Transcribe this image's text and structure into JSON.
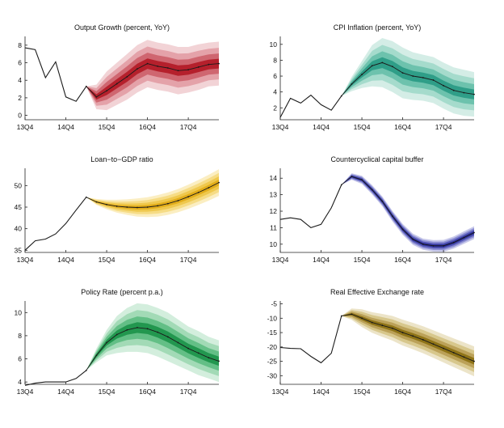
{
  "x_tick_labels": [
    "13Q4",
    "14Q4",
    "15Q4",
    "16Q4",
    "17Q4"
  ],
  "chart_data": [
    {
      "type": "line",
      "title": "Output Growth (percent, YoY)",
      "ylim": [
        -0.5,
        9
      ],
      "yticks": [
        0,
        2,
        4,
        6,
        8
      ],
      "colors": {
        "fan": [
          "#f2d3d6",
          "#e4a2a9",
          "#cf6670",
          "#b5202c"
        ],
        "line": "#1a1a1a"
      },
      "history": [
        7.7,
        7.5,
        4.3,
        6.1,
        2.1,
        1.6,
        3.3
      ],
      "median": [
        3.3,
        2.1,
        2.8,
        3.6,
        4.4,
        5.3,
        5.9,
        5.6,
        5.4,
        5.1,
        5.2,
        5.5,
        5.8,
        5.9
      ],
      "spread": [
        0,
        1.4,
        2.2,
        2.4,
        2.6,
        2.7,
        2.7,
        2.7,
        2.7,
        2.7,
        2.6,
        2.6,
        2.5,
        2.5
      ],
      "grid": false
    },
    {
      "type": "line",
      "title": "CPI Inflation (percent, YoY)",
      "ylim": [
        0.5,
        11
      ],
      "yticks": [
        2,
        4,
        6,
        8,
        10
      ],
      "colors": {
        "fan": [
          "#d4ede6",
          "#a5dbcc",
          "#6dc2ad",
          "#2f9e88"
        ],
        "line": "#1a1a1a"
      },
      "history": [
        0.8,
        3.2,
        2.6,
        3.6,
        2.4,
        1.7,
        3.5
      ],
      "median": [
        3.5,
        5.0,
        6.2,
        7.3,
        7.7,
        7.2,
        6.4,
        6.0,
        5.8,
        5.5,
        4.8,
        4.2,
        3.9,
        3.7
      ],
      "spread": [
        0,
        0.9,
        1.7,
        2.6,
        3.1,
        3.2,
        3.2,
        3.0,
        2.9,
        2.9,
        2.9,
        2.9,
        2.9,
        2.8
      ],
      "grid": false
    },
    {
      "type": "line",
      "title": "Loan−to−GDP ratio",
      "ylim": [
        34.5,
        54
      ],
      "yticks": [
        35,
        40,
        45,
        50
      ],
      "colors": {
        "fan": [
          "#fbeec2",
          "#f6dc85",
          "#efc84d",
          "#e2ad1a"
        ],
        "line": "#1a1a1a"
      },
      "history": [
        35.0,
        37.2,
        37.6,
        38.8,
        41.2,
        44.3,
        47.3
      ],
      "median": [
        47.3,
        46.2,
        45.6,
        45.2,
        45.0,
        44.9,
        45.0,
        45.3,
        45.8,
        46.5,
        47.4,
        48.4,
        49.5,
        50.7
      ],
      "spread": [
        0,
        0.7,
        1.1,
        1.5,
        1.8,
        2.1,
        2.3,
        2.5,
        2.6,
        2.7,
        2.8,
        2.9,
        3.0,
        3.1
      ],
      "grid": false
    },
    {
      "type": "line",
      "title": "Countercyclical capital buffer",
      "ylim": [
        9.5,
        14.6
      ],
      "yticks": [
        10,
        11,
        12,
        13,
        14
      ],
      "colors": {
        "fan": [
          "#c8c9ea",
          "#8d8fd4",
          "#5558b6",
          "#2a2c96"
        ],
        "line": "#1a1a1a"
      },
      "history": [
        11.5,
        11.6,
        11.5,
        11.0,
        11.2,
        12.2,
        13.6
      ],
      "median": [
        13.6,
        14.1,
        13.9,
        13.3,
        12.6,
        11.7,
        10.9,
        10.3,
        10.0,
        9.9,
        9.9,
        10.1,
        10.4,
        10.7
      ],
      "spread": [
        0,
        0.2,
        0.25,
        0.28,
        0.3,
        0.32,
        0.33,
        0.34,
        0.34,
        0.35,
        0.36,
        0.37,
        0.38,
        0.39
      ],
      "grid": false
    },
    {
      "type": "line",
      "title": "Policy Rate (percent p.a.)",
      "ylim": [
        3.8,
        11
      ],
      "yticks": [
        4,
        6,
        8,
        10
      ],
      "colors": {
        "fan": [
          "#d3eedd",
          "#a2dab6",
          "#63bf86",
          "#22974f"
        ],
        "line": "#1a1a1a"
      },
      "history": [
        3.7,
        3.9,
        4.0,
        4.0,
        4.0,
        4.3,
        5.0
      ],
      "median": [
        5.0,
        6.3,
        7.4,
        8.1,
        8.5,
        8.7,
        8.6,
        8.3,
        7.9,
        7.4,
        6.9,
        6.5,
        6.1,
        5.8
      ],
      "spread": [
        0,
        0.6,
        1.1,
        1.6,
        1.9,
        2.1,
        2.1,
        2.1,
        2.1,
        2.0,
        1.9,
        1.9,
        1.8,
        1.8
      ],
      "grid": false
    },
    {
      "type": "line",
      "title": "Real Effective Exchange rate",
      "ylim": [
        -33,
        -4
      ],
      "yticks": [
        -5,
        -10,
        -15,
        -20,
        -25,
        -30
      ],
      "colors": {
        "fan": [
          "#ece4c8",
          "#d7c78c",
          "#bba158",
          "#8f7417"
        ],
        "line": "#1a1a1a"
      },
      "history": [
        -20.2,
        -20.5,
        -20.6,
        -23.3,
        -25.5,
        -22.2,
        -9.2
      ],
      "median": [
        -9.2,
        -8.6,
        -10.0,
        -11.5,
        -12.5,
        -13.5,
        -15.0,
        -16.2,
        -17.5,
        -19.0,
        -20.5,
        -22.0,
        -23.5,
        -25.0
      ],
      "spread": [
        0,
        2.0,
        3.1,
        3.6,
        4.0,
        4.3,
        4.5,
        4.6,
        4.7,
        4.8,
        4.9,
        5.0,
        5.1,
        5.2
      ],
      "grid": false
    }
  ]
}
